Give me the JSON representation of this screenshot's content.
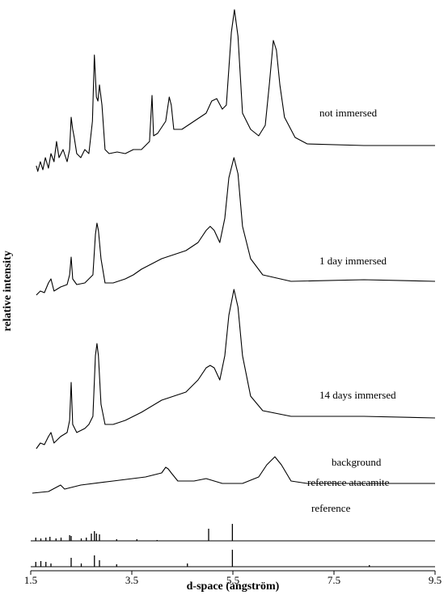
{
  "chart_data": {
    "type": "line",
    "xlabel": "d-space (angström)",
    "ylabel": "relative intensity",
    "xlim": [
      1.5,
      9.5
    ],
    "xticks": [
      1.5,
      3.5,
      5.5,
      7.5,
      9.5
    ],
    "ylim": [
      0,
      700
    ],
    "color": "#000000",
    "series": [
      {
        "name": "not immersed",
        "style": "line",
        "x": [
          1.61,
          1.64,
          1.69,
          1.74,
          1.79,
          1.85,
          1.9,
          1.96,
          2.01,
          2.06,
          2.14,
          2.22,
          2.27,
          2.3,
          2.33,
          2.36,
          2.41,
          2.49,
          2.57,
          2.65,
          2.72,
          2.76,
          2.8,
          2.83,
          2.86,
          2.91,
          2.97,
          3.05,
          3.21,
          3.37,
          3.53,
          3.69,
          3.85,
          3.9,
          3.93,
          4.01,
          4.17,
          4.24,
          4.28,
          4.33,
          4.49,
          4.73,
          4.97,
          5.08,
          5.18,
          5.29,
          5.37,
          5.47,
          5.53,
          5.6,
          5.69,
          5.85,
          6.01,
          6.14,
          6.22,
          6.3,
          6.36,
          6.43,
          6.52,
          6.73,
          6.97,
          8.09,
          9.5
        ],
        "values": [
          501,
          494,
          506,
          496,
          511,
          498,
          516,
          506,
          531,
          511,
          521,
          506,
          521,
          561,
          546,
          536,
          516,
          511,
          521,
          516,
          556,
          638,
          586,
          581,
          601,
          576,
          521,
          516,
          518,
          516,
          521,
          521,
          531,
          588,
          538,
          541,
          556,
          586,
          576,
          546,
          546,
          556,
          566,
          581,
          584,
          571,
          576,
          666,
          694,
          661,
          566,
          546,
          538,
          551,
          601,
          656,
          644,
          601,
          561,
          536,
          528,
          526,
          526
        ]
      },
      {
        "name": "1 day immersed",
        "style": "line",
        "x": [
          1.61,
          1.69,
          1.77,
          1.85,
          1.9,
          1.96,
          2.09,
          2.22,
          2.27,
          2.3,
          2.33,
          2.41,
          2.57,
          2.65,
          2.73,
          2.78,
          2.81,
          2.84,
          2.89,
          2.97,
          3.13,
          3.37,
          3.53,
          3.69,
          4.09,
          4.57,
          4.81,
          4.97,
          5.05,
          5.13,
          5.24,
          5.34,
          5.42,
          5.52,
          5.6,
          5.69,
          5.85,
          6.09,
          6.65,
          8.09,
          9.5
        ],
        "values": [
          341,
          346,
          344,
          356,
          361,
          346,
          351,
          354,
          366,
          388,
          361,
          354,
          356,
          361,
          366,
          416,
          430,
          421,
          386,
          356,
          356,
          361,
          366,
          373,
          386,
          396,
          406,
          421,
          426,
          421,
          406,
          436,
          486,
          511,
          491,
          426,
          386,
          366,
          358,
          360,
          358
        ]
      },
      {
        "name": "14 days immersed",
        "style": "line",
        "x": [
          1.61,
          1.69,
          1.77,
          1.85,
          1.9,
          1.96,
          2.09,
          2.22,
          2.27,
          2.3,
          2.33,
          2.41,
          2.57,
          2.65,
          2.73,
          2.78,
          2.81,
          2.84,
          2.89,
          2.97,
          3.13,
          3.37,
          3.53,
          3.69,
          4.09,
          4.57,
          4.81,
          4.97,
          5.05,
          5.13,
          5.24,
          5.34,
          5.42,
          5.52,
          5.6,
          5.69,
          5.85,
          6.09,
          6.65,
          8.09,
          9.5
        ],
        "values": [
          151,
          158,
          156,
          166,
          171,
          158,
          166,
          171,
          186,
          233,
          181,
          171,
          176,
          181,
          191,
          266,
          281,
          266,
          206,
          181,
          181,
          186,
          191,
          196,
          211,
          221,
          236,
          251,
          254,
          251,
          236,
          266,
          316,
          348,
          326,
          266,
          216,
          198,
          191,
          191,
          189
        ]
      },
      {
        "name": "background",
        "style": "line",
        "x": [
          1.53,
          1.85,
          2.09,
          2.17,
          2.49,
          3.13,
          3.77,
          4.09,
          4.17,
          4.22,
          4.28,
          4.41,
          4.73,
          4.97,
          5.13,
          5.29,
          5.69,
          6.01,
          6.17,
          6.33,
          6.46,
          6.65,
          6.97,
          8.09,
          9.5
        ],
        "values": [
          96,
          98,
          106,
          101,
          106,
          111,
          116,
          121,
          128,
          126,
          121,
          111,
          111,
          114,
          111,
          108,
          108,
          116,
          131,
          141,
          131,
          111,
          108,
          108,
          108
        ]
      },
      {
        "name": "reference atacamite",
        "style": "sticks",
        "base": 37,
        "x": [
          1.6,
          1.7,
          1.8,
          1.88,
          2.0,
          2.1,
          2.27,
          2.3,
          2.5,
          2.6,
          2.7,
          2.76,
          2.8,
          2.86,
          3.2,
          3.6,
          4.0,
          5.02,
          5.49
        ],
        "values": [
          41,
          40,
          41,
          42,
          40,
          41,
          44,
          43,
          40,
          41,
          46,
          49,
          46,
          45,
          39,
          39,
          38,
          52,
          58
        ]
      },
      {
        "name": "reference",
        "style": "sticks",
        "base": 5,
        "x": [
          1.6,
          1.7,
          1.8,
          1.9,
          2.3,
          2.5,
          2.76,
          2.86,
          3.2,
          4.6,
          5.49,
          8.2
        ],
        "values": [
          11,
          12,
          11,
          9,
          16,
          9,
          19,
          13,
          8,
          9,
          26,
          7
        ]
      }
    ]
  }
}
